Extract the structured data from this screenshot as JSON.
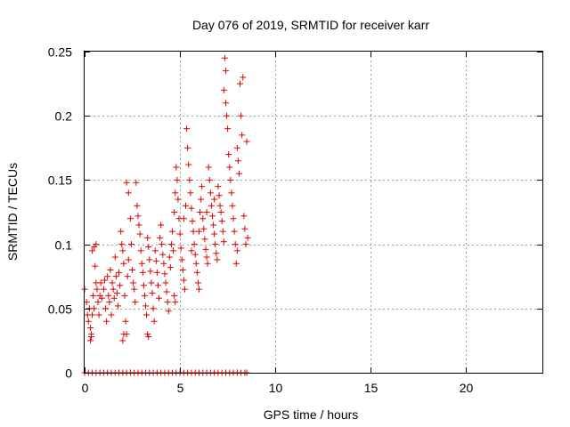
{
  "chart_data": {
    "type": "scatter",
    "title": "Day 076 of 2019, SRMTID for receiver karr",
    "xlabel": "GPS time / hours",
    "ylabel": "SRMTID / TECUs",
    "xlim": [
      0,
      24
    ],
    "ylim": [
      0,
      0.25
    ],
    "x_ticks": [
      0,
      5,
      10,
      15,
      20
    ],
    "x_tick_labels": [
      "0",
      "5",
      "10",
      "15",
      "20"
    ],
    "y_ticks": [
      0,
      0.05,
      0.1,
      0.15,
      0.2,
      0.25
    ],
    "y_tick_labels": [
      "0",
      "0.05",
      "0.1",
      "0.15",
      "0.2",
      "0.25"
    ],
    "grid": true,
    "marker": "+",
    "color": "#e00000",
    "series": [
      {
        "name": "SRMTID",
        "points": [
          [
            0.0,
            0.065
          ],
          [
            0.1,
            0.055
          ],
          [
            0.15,
            0.045
          ],
          [
            0.2,
            0.04
          ],
          [
            0.25,
            0.05
          ],
          [
            0.3,
            0.035
          ],
          [
            0.35,
            0.03
          ],
          [
            0.4,
            0.045
          ],
          [
            0.45,
            0.06
          ],
          [
            0.5,
            0.05
          ],
          [
            0.4,
            0.095
          ],
          [
            0.5,
            0.098
          ],
          [
            0.55,
            0.083
          ],
          [
            0.6,
            0.07
          ],
          [
            0.65,
            0.065
          ],
          [
            0.7,
            0.055
          ],
          [
            0.75,
            0.045
          ],
          [
            0.8,
            0.06
          ],
          [
            0.85,
            0.07
          ],
          [
            0.9,
            0.058
          ],
          [
            0.3,
            0.025
          ],
          [
            0.35,
            0.028
          ],
          [
            0.6,
            0.1
          ],
          [
            1.0,
            0.065
          ],
          [
            1.05,
            0.072
          ],
          [
            1.1,
            0.05
          ],
          [
            1.15,
            0.04
          ],
          [
            1.2,
            0.075
          ],
          [
            1.25,
            0.06
          ],
          [
            1.3,
            0.055
          ],
          [
            1.35,
            0.08
          ],
          [
            1.4,
            0.045
          ],
          [
            1.45,
            0.07
          ],
          [
            1.5,
            0.065
          ],
          [
            1.55,
            0.058
          ],
          [
            1.6,
            0.09
          ],
          [
            1.65,
            0.075
          ],
          [
            1.7,
            0.062
          ],
          [
            1.75,
            0.052
          ],
          [
            1.8,
            0.078
          ],
          [
            1.85,
            0.068
          ],
          [
            1.9,
            0.11
          ],
          [
            1.95,
            0.1
          ],
          [
            2.0,
            0.095
          ],
          [
            2.05,
            0.085
          ],
          [
            2.1,
            0.06
          ],
          [
            2.15,
            0.04
          ],
          [
            2.2,
            0.03
          ],
          [
            2.25,
            0.075
          ],
          [
            2.3,
            0.088
          ],
          [
            2.0,
            0.025
          ],
          [
            2.05,
            0.03
          ],
          [
            2.2,
            0.148
          ],
          [
            2.3,
            0.14
          ],
          [
            2.4,
            0.12
          ],
          [
            2.45,
            0.1
          ],
          [
            2.5,
            0.08
          ],
          [
            2.55,
            0.07
          ],
          [
            2.6,
            0.065
          ],
          [
            2.65,
            0.055
          ],
          [
            2.7,
            0.148
          ],
          [
            2.75,
            0.13
          ],
          [
            2.8,
            0.122
          ],
          [
            2.85,
            0.115
          ],
          [
            2.9,
            0.108
          ],
          [
            2.95,
            0.095
          ],
          [
            3.0,
            0.085
          ],
          [
            3.05,
            0.078
          ],
          [
            3.1,
            0.068
          ],
          [
            3.15,
            0.06
          ],
          [
            3.2,
            0.052
          ],
          [
            3.25,
            0.045
          ],
          [
            3.3,
            0.105
          ],
          [
            3.35,
            0.098
          ],
          [
            3.4,
            0.088
          ],
          [
            3.45,
            0.079
          ],
          [
            3.5,
            0.07
          ],
          [
            3.55,
            0.062
          ],
          [
            3.6,
            0.05
          ],
          [
            3.65,
            0.04
          ],
          [
            3.3,
            0.03
          ],
          [
            3.35,
            0.028
          ],
          [
            3.7,
            0.095
          ],
          [
            3.75,
            0.087
          ],
          [
            3.8,
            0.078
          ],
          [
            3.85,
            0.068
          ],
          [
            3.9,
            0.058
          ],
          [
            3.95,
            0.105
          ],
          [
            4.0,
            0.115
          ],
          [
            4.05,
            0.1
          ],
          [
            4.1,
            0.092
          ],
          [
            4.15,
            0.085
          ],
          [
            4.2,
            0.077
          ],
          [
            4.25,
            0.07
          ],
          [
            4.3,
            0.063
          ],
          [
            4.35,
            0.055
          ],
          [
            4.4,
            0.048
          ],
          [
            4.45,
            0.09
          ],
          [
            4.5,
            0.082
          ],
          [
            4.55,
            0.1
          ],
          [
            4.6,
            0.11
          ],
          [
            4.65,
            0.095
          ],
          [
            4.7,
            0.125
          ],
          [
            4.75,
            0.14
          ],
          [
            4.8,
            0.16
          ],
          [
            4.85,
            0.15
          ],
          [
            4.9,
            0.135
          ],
          [
            4.95,
            0.12
          ],
          [
            5.0,
            0.108
          ],
          [
            5.05,
            0.097
          ],
          [
            4.7,
            0.06
          ],
          [
            4.75,
            0.055
          ],
          [
            5.1,
            0.088
          ],
          [
            5.15,
            0.08
          ],
          [
            5.2,
            0.072
          ],
          [
            5.25,
            0.065
          ],
          [
            5.3,
            0.13
          ],
          [
            5.35,
            0.19
          ],
          [
            5.4,
            0.175
          ],
          [
            5.45,
            0.162
          ],
          [
            5.5,
            0.15
          ],
          [
            5.55,
            0.14
          ],
          [
            5.6,
            0.128
          ],
          [
            5.65,
            0.118
          ],
          [
            5.7,
            0.11
          ],
          [
            5.75,
            0.1
          ],
          [
            5.8,
            0.092
          ],
          [
            5.85,
            0.085
          ],
          [
            5.9,
            0.078
          ],
          [
            5.95,
            0.07
          ],
          [
            6.0,
            0.065
          ],
          [
            6.05,
            0.125
          ],
          [
            6.1,
            0.135
          ],
          [
            6.15,
            0.145
          ],
          [
            6.2,
            0.12
          ],
          [
            6.25,
            0.112
          ],
          [
            6.3,
            0.104
          ],
          [
            6.35,
            0.096
          ],
          [
            6.4,
            0.09
          ],
          [
            6.45,
            0.085
          ],
          [
            6.5,
            0.16
          ],
          [
            6.55,
            0.15
          ],
          [
            6.6,
            0.14
          ],
          [
            6.65,
            0.13
          ],
          [
            6.7,
            0.122
          ],
          [
            6.75,
            0.115
          ],
          [
            6.8,
            0.108
          ],
          [
            6.85,
            0.1
          ],
          [
            6.9,
            0.093
          ],
          [
            6.95,
            0.088
          ],
          [
            7.0,
            0.145
          ],
          [
            7.05,
            0.138
          ],
          [
            7.1,
            0.13
          ],
          [
            7.15,
            0.125
          ],
          [
            7.2,
            0.118
          ],
          [
            7.25,
            0.11
          ],
          [
            7.3,
            0.102
          ],
          [
            7.35,
            0.245
          ],
          [
            7.4,
            0.235
          ],
          [
            7.45,
            0.2
          ],
          [
            7.5,
            0.19
          ],
          [
            7.55,
            0.17
          ],
          [
            7.6,
            0.16
          ],
          [
            7.65,
            0.15
          ],
          [
            7.7,
            0.14
          ],
          [
            7.75,
            0.13
          ],
          [
            7.8,
            0.12
          ],
          [
            7.85,
            0.11
          ],
          [
            7.9,
            0.1
          ],
          [
            7.95,
            0.085
          ],
          [
            8.0,
            0.175
          ],
          [
            8.05,
            0.165
          ],
          [
            8.1,
            0.155
          ],
          [
            8.15,
            0.225
          ],
          [
            8.2,
            0.2
          ],
          [
            8.25,
            0.185
          ],
          [
            8.3,
            0.23
          ],
          [
            8.35,
            0.122
          ],
          [
            8.4,
            0.112
          ],
          [
            8.45,
            0.1
          ],
          [
            8.5,
            0.18
          ],
          [
            8.55,
            0.105
          ],
          [
            8.0,
            0.095
          ],
          [
            7.4,
            0.21
          ],
          [
            7.3,
            0.22
          ],
          [
            6.8,
            0.135
          ],
          [
            6.4,
            0.125
          ],
          [
            6.0,
            0.11
          ],
          [
            5.6,
            0.095
          ],
          [
            5.2,
            0.12
          ],
          [
            0.0,
            0.0
          ],
          [
            0.2,
            0.0
          ],
          [
            0.4,
            0.0
          ],
          [
            0.6,
            0.0
          ],
          [
            0.8,
            0.0
          ],
          [
            1.0,
            0.0
          ],
          [
            1.2,
            0.0
          ],
          [
            1.4,
            0.0
          ],
          [
            1.6,
            0.0
          ],
          [
            1.8,
            0.0
          ],
          [
            2.0,
            0.0
          ],
          [
            2.2,
            0.0
          ],
          [
            2.4,
            0.0
          ],
          [
            2.6,
            0.0
          ],
          [
            2.8,
            0.0
          ],
          [
            3.0,
            0.0
          ],
          [
            3.2,
            0.0
          ],
          [
            3.4,
            0.0
          ],
          [
            3.6,
            0.0
          ],
          [
            3.8,
            0.0
          ],
          [
            4.0,
            0.0
          ],
          [
            4.2,
            0.0
          ],
          [
            4.4,
            0.0
          ],
          [
            4.6,
            0.0
          ],
          [
            4.8,
            0.0
          ],
          [
            5.0,
            0.0
          ],
          [
            5.2,
            0.0
          ],
          [
            5.4,
            0.0
          ],
          [
            5.6,
            0.0
          ],
          [
            5.8,
            0.0
          ],
          [
            6.0,
            0.0
          ],
          [
            6.2,
            0.0
          ],
          [
            6.4,
            0.0
          ],
          [
            6.6,
            0.0
          ],
          [
            6.8,
            0.0
          ],
          [
            7.0,
            0.0
          ],
          [
            7.2,
            0.0
          ],
          [
            7.4,
            0.0
          ],
          [
            7.6,
            0.0
          ],
          [
            7.8,
            0.0
          ],
          [
            8.0,
            0.0
          ],
          [
            8.2,
            0.0
          ],
          [
            8.4,
            0.0
          ],
          [
            8.5,
            0.0
          ]
        ]
      }
    ]
  }
}
